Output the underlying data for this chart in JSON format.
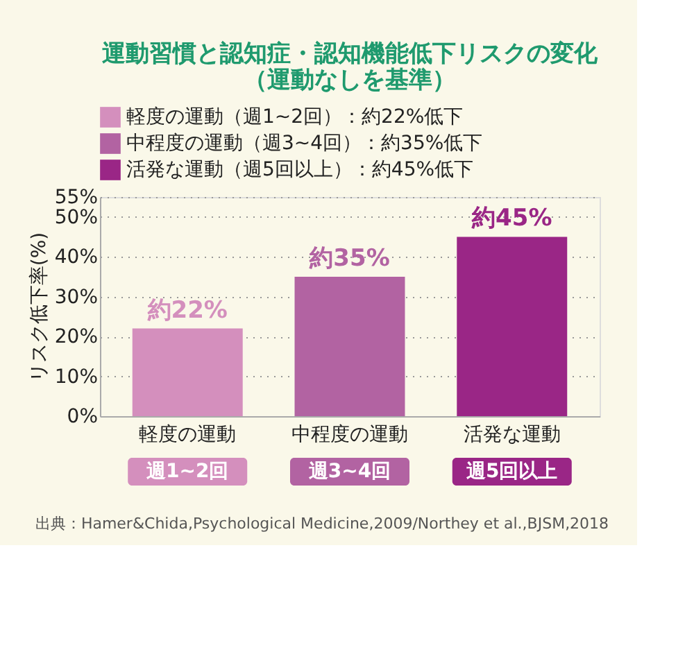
{
  "chart_data": {
    "type": "bar",
    "title": [
      "運動習慣と認知症・認知機能低下リスクの変化",
      "（運動なしを基準）"
    ],
    "ylabel": "リスク低下率(%)",
    "categories": [
      "軽度の運動",
      "中程度の運動",
      "活発な運動"
    ],
    "series": [
      {
        "name": "軽度の運動（週1~2回）：約22%低下",
        "color": "#d48fbd",
        "values": [
          22,
          null,
          null
        ],
        "value_labels": [
          "約22%",
          null,
          null
        ]
      },
      {
        "name": "中程度の運動（週3~4回）：約35%低下",
        "color": "#b263a2",
        "values": [
          null,
          35,
          null
        ],
        "value_labels": [
          null,
          "約35%",
          null
        ]
      },
      {
        "name": "活発な運動（週5回以上）：約45%低下",
        "color": "#9a2686",
        "values": [
          null,
          null,
          45
        ],
        "value_labels": [
          null,
          null,
          "約45%"
        ]
      }
    ],
    "ylim": [
      0,
      55
    ],
    "yticks": [
      {
        "value": 0,
        "label": "0%"
      },
      {
        "value": 10,
        "label": "10%"
      },
      {
        "value": 20,
        "label": "20%"
      },
      {
        "value": 30,
        "label": "30%"
      },
      {
        "value": 40,
        "label": "40%"
      },
      {
        "value": 50,
        "label": "50%"
      },
      {
        "value": 55,
        "label": "55%"
      }
    ],
    "grid": "y",
    "legend": "top",
    "annotations": [
      "週1~2回",
      "週3~4回",
      "週5回以上",
      "出典：Hamer&Chida,Psychological Medicine,2009/Northey et al.,BJSM,2018"
    ]
  }
}
